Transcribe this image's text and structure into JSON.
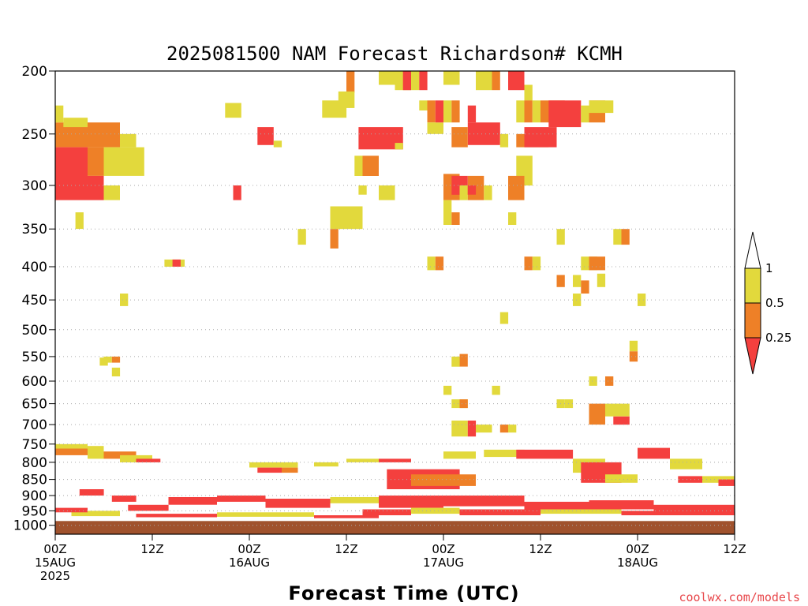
{
  "colors": {
    "yellow": "#e2d93c",
    "orange": "#ee8027",
    "red": "#f4403e",
    "ground": "#a0522d"
  },
  "watermark": "coolwx.com/models",
  "chart_data": {
    "type": "heatmap",
    "title": "2025081500 NAM Forecast Richardson# KCMH",
    "xlabel": "Forecast Time (UTC)",
    "ylabel": "",
    "x_unit": "forecast hour",
    "xlim": [
      0,
      84
    ],
    "y_unit": "hPa",
    "ylim": [
      1000,
      200
    ],
    "y_scale": "log",
    "y_ticks": [
      200,
      250,
      300,
      350,
      400,
      450,
      500,
      550,
      600,
      650,
      700,
      750,
      800,
      850,
      900,
      950,
      1000
    ],
    "x_ticks": [
      {
        "hour": 0,
        "lines": [
          "00Z",
          "15AUG",
          "2025"
        ]
      },
      {
        "hour": 12,
        "lines": [
          "12Z"
        ]
      },
      {
        "hour": 24,
        "lines": [
          "00Z",
          "16AUG"
        ]
      },
      {
        "hour": 36,
        "lines": [
          "12Z"
        ]
      },
      {
        "hour": 48,
        "lines": [
          "00Z",
          "17AUG"
        ]
      },
      {
        "hour": 60,
        "lines": [
          "12Z"
        ]
      },
      {
        "hour": 72,
        "lines": [
          "00Z",
          "18AUG"
        ]
      },
      {
        "hour": 84,
        "lines": [
          "12Z"
        ]
      }
    ],
    "dotted_grid": true,
    "ground_below_hpa": 985,
    "legend": {
      "position": "right",
      "bounds": [
        "1",
        "0.5",
        "0.25"
      ],
      "bins": [
        {
          "range": "0.5 - 1",
          "color": "yellow"
        },
        {
          "range": "0.25 - 0.5",
          "color": "orange"
        },
        {
          "range": "< 0.25",
          "color": "red"
        }
      ]
    },
    "bins_legend": "y = yellow (0.5-1), o = orange (0.25-0.5), r = red (<0.25); each cell = [start_hour, end_hour, top_hPa, bottom_hPa, bin]",
    "cells": [
      [
        0,
        4,
        240,
        262,
        "o"
      ],
      [
        0,
        4,
        262,
        316,
        "r"
      ],
      [
        0,
        1,
        226,
        240,
        "y"
      ],
      [
        4,
        6,
        262,
        290,
        "o"
      ],
      [
        4,
        6,
        290,
        316,
        "r"
      ],
      [
        6,
        8,
        300,
        316,
        "y"
      ],
      [
        1,
        4,
        236,
        244,
        "y"
      ],
      [
        4,
        8,
        240,
        262,
        "o"
      ],
      [
        8,
        10,
        250,
        262,
        "y"
      ],
      [
        6,
        11,
        262,
        290,
        "y"
      ],
      [
        2.5,
        3.5,
        330,
        350,
        "y"
      ],
      [
        22,
        23,
        300,
        316,
        "r"
      ],
      [
        30,
        31,
        350,
        370,
        "y"
      ],
      [
        8,
        9,
        440,
        460,
        "y"
      ],
      [
        21,
        23,
        224,
        236,
        "y"
      ],
      [
        25,
        27,
        244,
        260,
        "r"
      ],
      [
        27,
        28,
        256,
        262,
        "y"
      ],
      [
        13.5,
        16,
        390,
        400,
        "y"
      ],
      [
        14.5,
        15.5,
        390,
        400,
        "r"
      ],
      [
        33,
        36,
        222,
        236,
        "y"
      ],
      [
        36,
        37,
        200,
        216,
        "o"
      ],
      [
        35,
        37,
        215,
        228,
        "y"
      ],
      [
        37,
        38,
        270,
        290,
        "y"
      ],
      [
        38,
        40,
        270,
        290,
        "o"
      ],
      [
        37.5,
        38.5,
        300,
        310,
        "y"
      ],
      [
        40,
        42,
        300,
        316,
        "y"
      ],
      [
        34,
        38,
        323,
        350,
        "y"
      ],
      [
        34,
        35,
        350,
        375,
        "o"
      ],
      [
        37.5,
        43,
        244,
        264,
        "r"
      ],
      [
        42,
        43,
        258,
        264,
        "y"
      ],
      [
        40,
        42,
        200,
        210,
        "y"
      ],
      [
        42,
        44,
        200,
        214,
        "y"
      ],
      [
        43,
        44,
        200,
        214,
        "r"
      ],
      [
        44,
        45,
        200,
        214,
        "y"
      ],
      [
        45,
        46,
        200,
        214,
        "r"
      ],
      [
        45,
        46,
        222,
        230,
        "y"
      ],
      [
        46,
        47,
        222,
        240,
        "o"
      ],
      [
        46,
        48,
        240,
        250,
        "y"
      ],
      [
        47,
        48,
        222,
        240,
        "r"
      ],
      [
        48,
        49,
        222,
        240,
        "y"
      ],
      [
        49,
        50,
        222,
        240,
        "o"
      ],
      [
        48,
        50,
        200,
        210,
        "y"
      ],
      [
        51,
        52,
        226,
        240,
        "r"
      ],
      [
        51,
        55,
        240,
        260,
        "r"
      ],
      [
        49,
        51,
        244,
        262,
        "o"
      ],
      [
        55,
        56,
        250,
        262,
        "y"
      ],
      [
        52,
        54,
        200,
        214,
        "y"
      ],
      [
        54,
        55,
        200,
        214,
        "o"
      ],
      [
        56,
        58,
        200,
        214,
        "r"
      ],
      [
        58,
        59,
        210,
        222,
        "y"
      ],
      [
        57,
        61,
        250,
        262,
        "o"
      ],
      [
        58,
        62,
        244,
        262,
        "r"
      ],
      [
        57,
        59,
        270,
        300,
        "y"
      ],
      [
        56,
        58,
        290,
        316,
        "o"
      ],
      [
        57,
        58,
        222,
        240,
        "y"
      ],
      [
        58,
        59,
        222,
        240,
        "o"
      ],
      [
        59,
        60,
        222,
        240,
        "y"
      ],
      [
        60,
        63,
        222,
        240,
        "o"
      ],
      [
        61,
        65,
        222,
        244,
        "r"
      ],
      [
        65,
        66,
        226,
        240,
        "y"
      ],
      [
        66,
        68,
        222,
        240,
        "o"
      ],
      [
        66,
        69,
        222,
        232,
        "y"
      ],
      [
        48,
        50,
        288,
        316,
        "o"
      ],
      [
        49,
        51,
        290,
        310,
        "r"
      ],
      [
        50,
        51,
        300,
        316,
        "y"
      ],
      [
        51,
        53,
        290,
        316,
        "o"
      ],
      [
        51,
        52,
        300,
        310,
        "r"
      ],
      [
        53,
        54,
        300,
        316,
        "y"
      ],
      [
        48,
        49,
        316,
        345,
        "y"
      ],
      [
        49,
        50,
        330,
        345,
        "o"
      ],
      [
        56,
        57,
        330,
        345,
        "y"
      ],
      [
        62,
        63,
        350,
        370,
        "y"
      ],
      [
        69,
        70,
        350,
        370,
        "y"
      ],
      [
        70,
        71,
        350,
        370,
        "o"
      ],
      [
        46,
        47,
        386,
        405,
        "y"
      ],
      [
        47,
        48,
        386,
        405,
        "o"
      ],
      [
        58,
        59,
        386,
        405,
        "o"
      ],
      [
        59,
        60,
        386,
        405,
        "y"
      ],
      [
        65,
        67,
        386,
        405,
        "y"
      ],
      [
        66,
        68,
        386,
        405,
        "o"
      ],
      [
        67,
        68,
        410,
        430,
        "y"
      ],
      [
        62,
        63,
        412,
        430,
        "o"
      ],
      [
        64,
        65,
        412,
        430,
        "y"
      ],
      [
        65,
        66,
        420,
        440,
        "o"
      ],
      [
        64,
        65,
        440,
        460,
        "y"
      ],
      [
        72,
        73,
        440,
        460,
        "y"
      ],
      [
        55,
        56,
        470,
        490,
        "y"
      ],
      [
        71,
        72,
        520,
        540,
        "y"
      ],
      [
        71,
        72,
        540,
        560,
        "o"
      ],
      [
        6,
        7,
        550,
        562,
        "y"
      ],
      [
        7,
        8,
        550,
        562,
        "o"
      ],
      [
        7,
        8,
        572,
        590,
        "y"
      ],
      [
        5.5,
        6.5,
        552,
        568,
        "y"
      ],
      [
        50,
        51,
        545,
        570,
        "o"
      ],
      [
        49,
        50,
        550,
        570,
        "y"
      ],
      [
        48,
        49,
        610,
        630,
        "y"
      ],
      [
        49,
        51,
        640,
        660,
        "y"
      ],
      [
        54,
        55,
        610,
        630,
        "y"
      ],
      [
        50,
        51,
        640,
        660,
        "o"
      ],
      [
        62,
        63,
        640,
        660,
        "y"
      ],
      [
        63,
        64,
        640,
        660,
        "y"
      ],
      [
        66,
        67,
        590,
        610,
        "y"
      ],
      [
        68,
        69,
        590,
        610,
        "o"
      ],
      [
        66,
        68,
        650,
        700,
        "o"
      ],
      [
        68,
        71,
        650,
        680,
        "y"
      ],
      [
        69,
        71,
        680,
        700,
        "r"
      ],
      [
        49,
        51,
        690,
        730,
        "y"
      ],
      [
        51,
        52,
        690,
        730,
        "r"
      ],
      [
        52,
        54,
        700,
        720,
        "y"
      ],
      [
        55,
        56,
        700,
        720,
        "o"
      ],
      [
        56,
        57,
        700,
        720,
        "y"
      ],
      [
        0,
        4,
        750,
        762,
        "y"
      ],
      [
        0,
        4,
        762,
        780,
        "o"
      ],
      [
        4,
        6,
        755,
        790,
        "y"
      ],
      [
        6,
        10,
        770,
        790,
        "o"
      ],
      [
        8,
        12,
        780,
        800,
        "y"
      ],
      [
        10,
        13,
        790,
        800,
        "r"
      ],
      [
        24,
        30,
        800,
        815,
        "y"
      ],
      [
        25,
        28,
        815,
        830,
        "r"
      ],
      [
        28,
        30,
        815,
        830,
        "o"
      ],
      [
        32,
        35,
        800,
        812,
        "y"
      ],
      [
        36,
        40,
        790,
        800,
        "y"
      ],
      [
        40,
        44,
        790,
        800,
        "r"
      ],
      [
        48,
        52,
        770,
        790,
        "y"
      ],
      [
        53,
        58,
        765,
        785,
        "y"
      ],
      [
        57,
        64,
        765,
        790,
        "r"
      ],
      [
        64,
        68,
        790,
        830,
        "y"
      ],
      [
        65,
        70,
        800,
        860,
        "r"
      ],
      [
        68,
        72,
        835,
        860,
        "y"
      ],
      [
        72,
        76,
        760,
        790,
        "r"
      ],
      [
        76,
        80,
        790,
        820,
        "y"
      ],
      [
        41,
        50,
        820,
        880,
        "r"
      ],
      [
        44,
        52,
        835,
        870,
        "o"
      ],
      [
        3,
        6,
        880,
        900,
        "r"
      ],
      [
        7,
        10,
        900,
        920,
        "r"
      ],
      [
        9,
        14,
        930,
        950,
        "r"
      ],
      [
        14,
        20,
        905,
        930,
        "r"
      ],
      [
        20,
        26,
        900,
        920,
        "r"
      ],
      [
        26,
        34,
        910,
        940,
        "r"
      ],
      [
        34,
        40,
        905,
        925,
        "y"
      ],
      [
        40,
        48,
        900,
        940,
        "r"
      ],
      [
        48,
        58,
        900,
        935,
        "r"
      ],
      [
        58,
        66,
        920,
        950,
        "r"
      ],
      [
        66,
        74,
        915,
        945,
        "r"
      ],
      [
        74,
        84,
        930,
        955,
        "r"
      ],
      [
        38,
        44,
        945,
        965,
        "r"
      ],
      [
        44,
        50,
        940,
        960,
        "y"
      ],
      [
        50,
        60,
        945,
        965,
        "r"
      ],
      [
        60,
        70,
        945,
        960,
        "y"
      ],
      [
        70,
        84,
        950,
        965,
        "r"
      ],
      [
        10,
        20,
        960,
        972,
        "r"
      ],
      [
        20,
        32,
        955,
        970,
        "y"
      ],
      [
        32,
        40,
        965,
        975,
        "r"
      ],
      [
        2,
        8,
        950,
        968,
        "y"
      ],
      [
        0,
        4,
        940,
        955,
        "r"
      ],
      [
        77,
        80,
        840,
        860,
        "r"
      ],
      [
        80,
        84,
        840,
        860,
        "y"
      ],
      [
        82,
        84,
        850,
        870,
        "r"
      ]
    ]
  }
}
